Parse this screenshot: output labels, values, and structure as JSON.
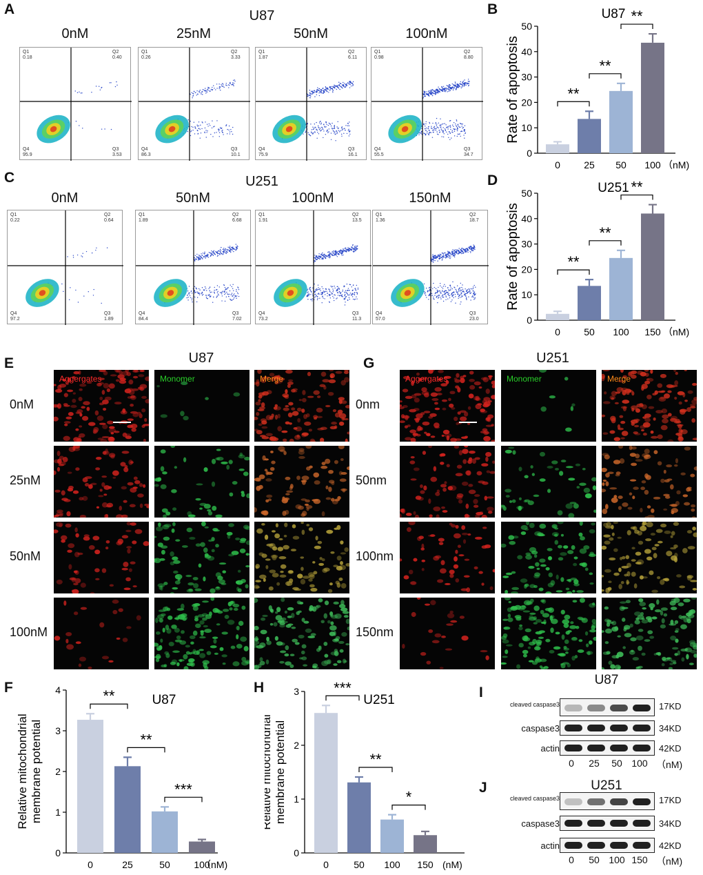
{
  "panels": {
    "A": {
      "letter": "A",
      "title": "U87",
      "conditions": [
        "0nM",
        "25nM",
        "50nM",
        "100nM"
      ],
      "quadrants": [
        {
          "q1": "0.18",
          "q2": "0.40",
          "q3": "3.53",
          "q4": "95.9"
        },
        {
          "q1": "0.26",
          "q2": "3.33",
          "q3": "10.1",
          "q4": "86.3"
        },
        {
          "q1": "1.87",
          "q2": "6.11",
          "q3": "16.1",
          "q4": "75.9"
        },
        {
          "q1": "0.98",
          "q2": "8.80",
          "q3": "34.7",
          "q4": "55.5"
        }
      ]
    },
    "C": {
      "letter": "C",
      "title": "U251",
      "conditions": [
        "0nM",
        "50nM",
        "100nM",
        "150nM"
      ],
      "quadrants": [
        {
          "q1": "0.22",
          "q2": "0.64",
          "q3": "1.89",
          "q4": "97.2"
        },
        {
          "q1": "1.89",
          "q2": "6.68",
          "q3": "7.02",
          "q4": "84.4"
        },
        {
          "q1": "1.91",
          "q2": "13.5",
          "q3": "11.3",
          "q4": "73.2"
        },
        {
          "q1": "1.36",
          "q2": "18.7",
          "q3": "23.0",
          "q4": "57.0"
        }
      ]
    },
    "E": {
      "letter": "E",
      "title": "U87",
      "channels": [
        "Aggergates",
        "Monomer",
        "Merge"
      ],
      "rows": [
        "0nM",
        "25nM",
        "50nM",
        "100nM"
      ]
    },
    "G": {
      "letter": "G",
      "title": "U251",
      "channels": [
        "Aggergates",
        "Monomer",
        "Merge"
      ],
      "rows": [
        "0nm",
        "50nm",
        "100nm",
        "150nm"
      ]
    },
    "I": {
      "letter": "I",
      "title": "U87",
      "rows": [
        "cleaved caspase3",
        "caspase3",
        "actin"
      ],
      "kd": [
        "17KD",
        "34KD",
        "42KD"
      ],
      "lanes": [
        "0",
        "25",
        "50",
        "100"
      ],
      "unit": "（nM)"
    },
    "J": {
      "letter": "J",
      "title": "U251",
      "rows": [
        "cleaved caspase3",
        "caspase3",
        "actin"
      ],
      "kd": [
        "17KD",
        "34KD",
        "42KD"
      ],
      "lanes": [
        "0",
        "50",
        "100",
        "150"
      ],
      "unit": "（nM)"
    },
    "quad_names": {
      "q1": "Q1",
      "q2": "Q2",
      "q3": "Q3",
      "q4": "Q4"
    }
  },
  "colors": {
    "bar1": "#c9d0e0",
    "bar2": "#6e7eaa",
    "bar3": "#9db4d5",
    "bar4": "#767487"
  },
  "chart_data": [
    {
      "id": "B",
      "letter": "B",
      "type": "bar",
      "title": "U87",
      "ylabel": "Rate of apoptosis",
      "unit": "（nM)",
      "categories": [
        "0",
        "25",
        "50",
        "100"
      ],
      "values": [
        3.5,
        13.5,
        24.5,
        43.5
      ],
      "errors": [
        1,
        3,
        3,
        3.5
      ],
      "ylim": [
        0,
        50
      ],
      "yticks": [
        "0",
        "10",
        "20",
        "30",
        "40",
        "50"
      ],
      "sig": [
        {
          "from": 0,
          "to": 1,
          "label": "**"
        },
        {
          "from": 1,
          "to": 2,
          "label": "**"
        },
        {
          "from": 2,
          "to": 3,
          "label": "**"
        }
      ]
    },
    {
      "id": "D",
      "letter": "D",
      "type": "bar",
      "title": "U251",
      "ylabel": "Rate of apoptosis",
      "unit": "（nM)",
      "categories": [
        "0",
        "50",
        "100",
        "150"
      ],
      "values": [
        2.5,
        13.5,
        24.5,
        42
      ],
      "errors": [
        1,
        2.5,
        3,
        3.5
      ],
      "ylim": [
        0,
        50
      ],
      "yticks": [
        "0",
        "10",
        "20",
        "30",
        "40",
        "50"
      ],
      "sig": [
        {
          "from": 0,
          "to": 1,
          "label": "**"
        },
        {
          "from": 1,
          "to": 2,
          "label": "**"
        },
        {
          "from": 2,
          "to": 3,
          "label": "**"
        }
      ]
    },
    {
      "id": "F",
      "letter": "F",
      "type": "bar",
      "title": "U87",
      "ylabel": "Relative  mitochondrial membrane potential",
      "unit": "（nM)",
      "categories": [
        "0",
        "25",
        "50",
        "100"
      ],
      "values": [
        3.27,
        2.13,
        1.02,
        0.28
      ],
      "errors": [
        0.15,
        0.22,
        0.11,
        0.05
      ],
      "ylim": [
        0,
        4
      ],
      "yticks": [
        "0",
        "1",
        "2",
        "3",
        "4"
      ],
      "sig": [
        {
          "from": 0,
          "to": 1,
          "label": "**"
        },
        {
          "from": 1,
          "to": 2,
          "label": "**"
        },
        {
          "from": 2,
          "to": 3,
          "label": "***"
        }
      ]
    },
    {
      "id": "H",
      "letter": "H",
      "type": "bar",
      "title": "U251",
      "ylabel": "Relative  mitochondrial membrane potential",
      "unit": "(nM)",
      "categories": [
        "0",
        "50",
        "100",
        "150"
      ],
      "values": [
        2.6,
        1.31,
        0.62,
        0.33
      ],
      "errors": [
        0.14,
        0.1,
        0.09,
        0.07
      ],
      "ylim": [
        0,
        3
      ],
      "yticks": [
        "0",
        "1",
        "2",
        "3"
      ],
      "sig": [
        {
          "from": 0,
          "to": 1,
          "label": "***"
        },
        {
          "from": 1,
          "to": 2,
          "label": "**"
        },
        {
          "from": 2,
          "to": 3,
          "label": "*"
        }
      ]
    }
  ]
}
